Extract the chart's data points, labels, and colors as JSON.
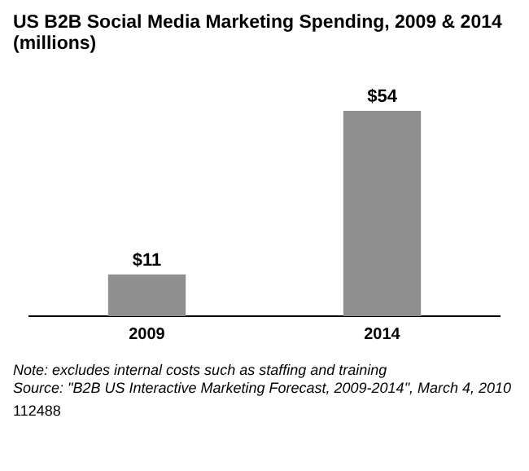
{
  "chart_data": {
    "type": "bar",
    "title": "US B2B Social Media Marketing Spending, 2009 & 2014 (millions)",
    "categories": [
      "2009",
      "2014"
    ],
    "values": [
      11,
      54
    ],
    "value_labels": [
      "$11",
      "$54"
    ],
    "color": "#8f8f8f",
    "annotations": [
      "Note: excludes internal costs such as staffing and training",
      "Source: \"B2B US Interactive Marketing Forecast, 2009-2014\", March 4, 2010",
      "112488"
    ]
  }
}
